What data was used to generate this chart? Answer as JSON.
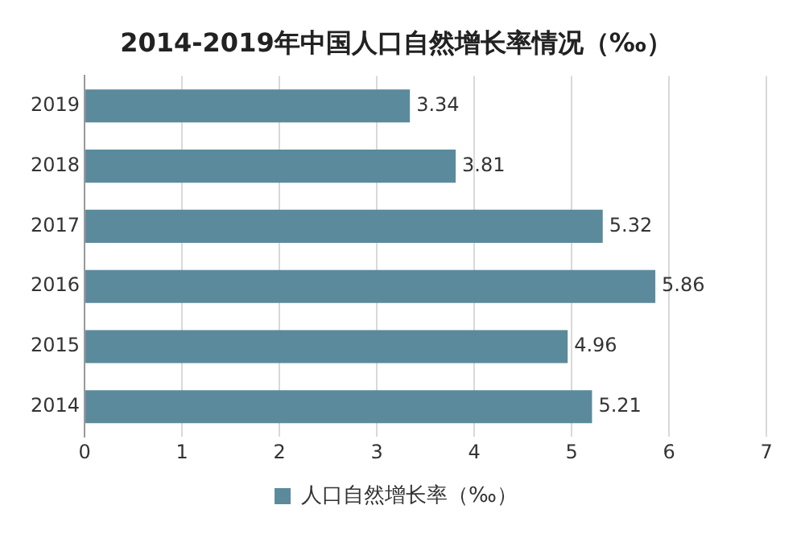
{
  "chart_data": {
    "type": "bar",
    "orientation": "horizontal",
    "title": "2014-2019年中国人口自然增长率情况（‰）",
    "categories": [
      "2019",
      "2018",
      "2017",
      "2016",
      "2015",
      "2014"
    ],
    "series": [
      {
        "name": "人口自然增长率（‰）",
        "color": "#5b8a9c",
        "values": [
          3.34,
          3.81,
          5.32,
          5.86,
          4.96,
          5.21
        ]
      }
    ],
    "xlim": [
      0,
      7
    ],
    "xticks": [
      0,
      1,
      2,
      3,
      4,
      5,
      6,
      7
    ],
    "grid": "x",
    "legend": "bottom",
    "data_labels": true
  }
}
